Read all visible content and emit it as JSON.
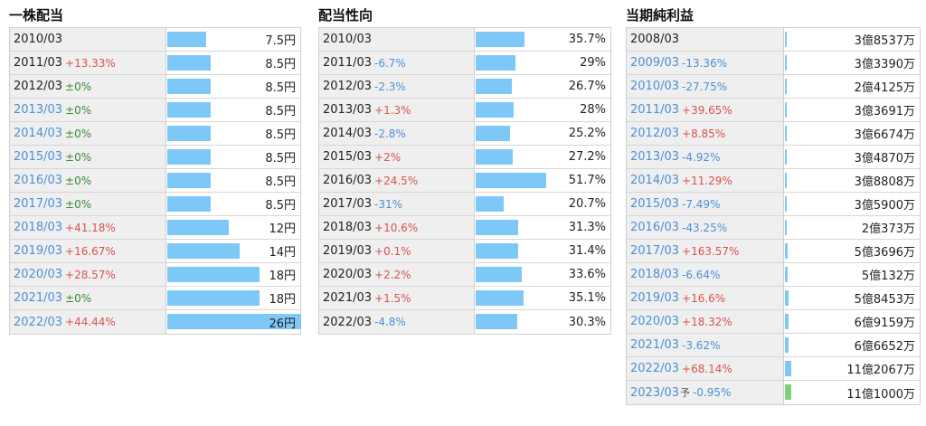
{
  "dividend": {
    "title": "一株配当",
    "rows": [
      {
        "period": "2010/03",
        "link": false,
        "change": "",
        "dir": "",
        "value": "7.5円",
        "level": 7.5
      },
      {
        "period": "2011/03",
        "link": false,
        "change": "+13.33%",
        "dir": "up",
        "value": "8.5円",
        "level": 8.5
      },
      {
        "period": "2012/03",
        "link": false,
        "change": "±0%",
        "dir": "zero",
        "value": "8.5円",
        "level": 8.5
      },
      {
        "period": "2013/03",
        "link": true,
        "change": "±0%",
        "dir": "zero",
        "value": "8.5円",
        "level": 8.5
      },
      {
        "period": "2014/03",
        "link": true,
        "change": "±0%",
        "dir": "zero",
        "value": "8.5円",
        "level": 8.5
      },
      {
        "period": "2015/03",
        "link": true,
        "change": "±0%",
        "dir": "zero",
        "value": "8.5円",
        "level": 8.5
      },
      {
        "period": "2016/03",
        "link": true,
        "change": "±0%",
        "dir": "zero",
        "value": "8.5円",
        "level": 8.5
      },
      {
        "period": "2017/03",
        "link": true,
        "change": "±0%",
        "dir": "zero",
        "value": "8.5円",
        "level": 8.5
      },
      {
        "period": "2018/03",
        "link": true,
        "change": "+41.18%",
        "dir": "up",
        "value": "12円",
        "level": 12
      },
      {
        "period": "2019/03",
        "link": true,
        "change": "+16.67%",
        "dir": "up",
        "value": "14円",
        "level": 14
      },
      {
        "period": "2020/03",
        "link": true,
        "change": "+28.57%",
        "dir": "up",
        "value": "18円",
        "level": 18
      },
      {
        "period": "2021/03",
        "link": true,
        "change": "±0%",
        "dir": "zero",
        "value": "18円",
        "level": 18
      },
      {
        "period": "2022/03",
        "link": true,
        "change": "+44.44%",
        "dir": "up",
        "value": "26円",
        "level": 26
      }
    ]
  },
  "payout": {
    "title": "配当性向",
    "rows": [
      {
        "period": "2010/03",
        "link": false,
        "change": "",
        "dir": "",
        "value": "35.7%",
        "level": 35.7
      },
      {
        "period": "2011/03",
        "link": false,
        "change": "-6.7%",
        "dir": "down",
        "value": "29%",
        "level": 29
      },
      {
        "period": "2012/03",
        "link": false,
        "change": "-2.3%",
        "dir": "down",
        "value": "26.7%",
        "level": 26.7
      },
      {
        "period": "2013/03",
        "link": false,
        "change": "+1.3%",
        "dir": "up",
        "value": "28%",
        "level": 28
      },
      {
        "period": "2014/03",
        "link": false,
        "change": "-2.8%",
        "dir": "down",
        "value": "25.2%",
        "level": 25.2
      },
      {
        "period": "2015/03",
        "link": false,
        "change": "+2%",
        "dir": "up",
        "value": "27.2%",
        "level": 27.2
      },
      {
        "period": "2016/03",
        "link": false,
        "change": "+24.5%",
        "dir": "up",
        "value": "51.7%",
        "level": 51.7
      },
      {
        "period": "2017/03",
        "link": false,
        "change": "-31%",
        "dir": "down",
        "value": "20.7%",
        "level": 20.7
      },
      {
        "period": "2018/03",
        "link": false,
        "change": "+10.6%",
        "dir": "up",
        "value": "31.3%",
        "level": 31.3
      },
      {
        "period": "2019/03",
        "link": false,
        "change": "+0.1%",
        "dir": "up",
        "value": "31.4%",
        "level": 31.4
      },
      {
        "period": "2020/03",
        "link": false,
        "change": "+2.2%",
        "dir": "up",
        "value": "33.6%",
        "level": 33.6
      },
      {
        "period": "2021/03",
        "link": false,
        "change": "+1.5%",
        "dir": "up",
        "value": "35.1%",
        "level": 35.1
      },
      {
        "period": "2022/03",
        "link": false,
        "change": "-4.8%",
        "dir": "down",
        "value": "30.3%",
        "level": 30.3
      }
    ]
  },
  "net_income": {
    "title": "当期純利益",
    "rows": [
      {
        "period": "2008/03",
        "link": false,
        "change": "",
        "dir": "",
        "forecast": "",
        "value": "3億8537万",
        "level": 3.8537
      },
      {
        "period": "2009/03",
        "link": true,
        "change": "-13.36%",
        "dir": "down",
        "forecast": "",
        "value": "3億3390万",
        "level": 3.339
      },
      {
        "period": "2010/03",
        "link": true,
        "change": "-27.75%",
        "dir": "down",
        "forecast": "",
        "value": "2億4125万",
        "level": 2.4125
      },
      {
        "period": "2011/03",
        "link": true,
        "change": "+39.65%",
        "dir": "up",
        "forecast": "",
        "value": "3億3691万",
        "level": 3.3691
      },
      {
        "period": "2012/03",
        "link": true,
        "change": "+8.85%",
        "dir": "up",
        "forecast": "",
        "value": "3億6674万",
        "level": 3.6674
      },
      {
        "period": "2013/03",
        "link": true,
        "change": "-4.92%",
        "dir": "down",
        "forecast": "",
        "value": "3億4870万",
        "level": 3.487
      },
      {
        "period": "2014/03",
        "link": true,
        "change": "+11.29%",
        "dir": "up",
        "forecast": "",
        "value": "3億8808万",
        "level": 3.8808
      },
      {
        "period": "2015/03",
        "link": true,
        "change": "-7.49%",
        "dir": "down",
        "forecast": "",
        "value": "3億5900万",
        "level": 3.59
      },
      {
        "period": "2016/03",
        "link": true,
        "change": "-43.25%",
        "dir": "down",
        "forecast": "",
        "value": "2億373万",
        "level": 2.0373
      },
      {
        "period": "2017/03",
        "link": true,
        "change": "+163.57%",
        "dir": "up",
        "forecast": "",
        "value": "5億3696万",
        "level": 5.3696
      },
      {
        "period": "2018/03",
        "link": true,
        "change": "-6.64%",
        "dir": "down",
        "forecast": "",
        "value": "5億132万",
        "level": 5.0132
      },
      {
        "period": "2019/03",
        "link": true,
        "change": "+16.6%",
        "dir": "up",
        "forecast": "",
        "value": "5億8453万",
        "level": 5.8453
      },
      {
        "period": "2020/03",
        "link": true,
        "change": "+18.32%",
        "dir": "up",
        "forecast": "",
        "value": "6億9159万",
        "level": 6.9159
      },
      {
        "period": "2021/03",
        "link": true,
        "change": "-3.62%",
        "dir": "down",
        "forecast": "",
        "value": "6億6652万",
        "level": 6.6652
      },
      {
        "period": "2022/03",
        "link": true,
        "change": "+68.14%",
        "dir": "up",
        "forecast": "",
        "value": "11億2067万",
        "level": 11.2067
      },
      {
        "period": "2023/03",
        "link": true,
        "change": "-0.95%",
        "dir": "down",
        "forecast": "予",
        "value": "11億1000万",
        "level": 11.1,
        "bar_color": "green"
      }
    ]
  },
  "colors": {
    "bar": "#7ec8f8",
    "bar_forecast": "#7fcf7f",
    "increase": "#d9534f",
    "decrease": "#4a90d9",
    "unchanged": "#3a8a3a",
    "link": "#4a90d9"
  }
}
